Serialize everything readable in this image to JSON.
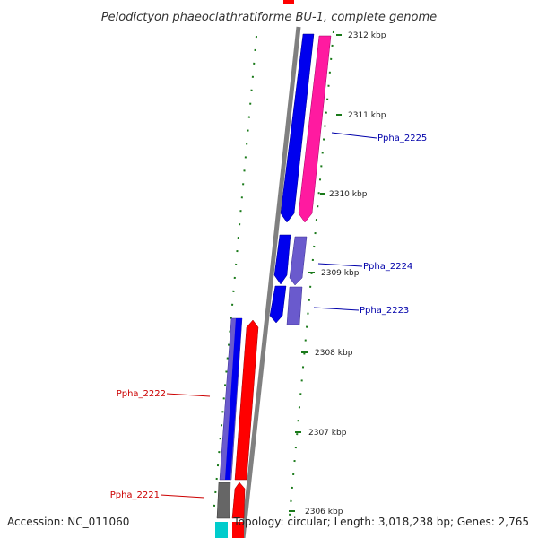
{
  "title": "Pelodictyon phaeoclathratiforme BU-1, complete genome",
  "ticks": [
    "2312 kbp",
    "2311 kbp",
    "2310 kbp",
    "2309 kbp",
    "2308 kbp",
    "2307 kbp",
    "2306 kbp"
  ],
  "genes": [
    {
      "name": "Ppha_2225",
      "strand": "+"
    },
    {
      "name": "Ppha_2224",
      "strand": "+"
    },
    {
      "name": "Ppha_2223",
      "strand": "+"
    },
    {
      "name": "Ppha_2222",
      "strand": "-"
    },
    {
      "name": "Ppha_2221",
      "strand": "-"
    }
  ],
  "footer": {
    "accession": "Accession: NC_011060",
    "topology": "Topology: circular; Length: 3,018,238 bp; Genes: 2,765"
  },
  "colors": {
    "forward_gene": "#0000ee",
    "forward_cds": "#ff1aa0",
    "forward_cds_alt": "#6a5acd",
    "reverse_gene": "#ff0000",
    "reverse_cds": "#6a5acd",
    "reverse_other": "#666666",
    "reverse_rna": "#00cccc",
    "backbone": "#808080",
    "tick_mark": "#1a7a1a",
    "label_forward": "#0000aa",
    "label_reverse": "#cc0000"
  }
}
